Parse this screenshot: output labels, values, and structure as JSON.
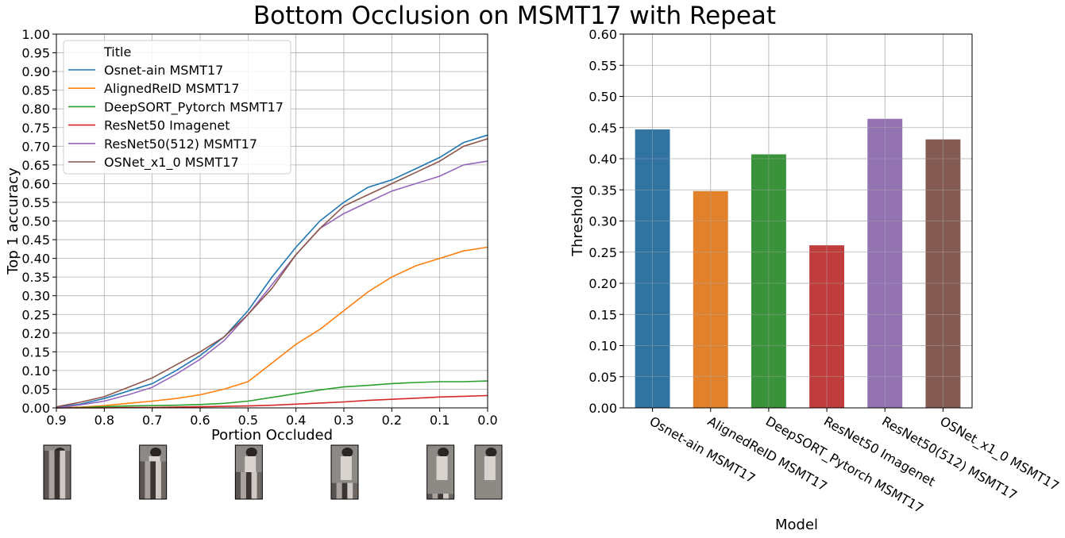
{
  "figure_title": "Bottom Occlusion on MSMT17 with Repeat",
  "chart_data": [
    {
      "type": "line",
      "xlabel": "Portion Occluded",
      "ylabel": "Top 1 accuracy",
      "xlim": [
        0.9,
        0.0
      ],
      "ylim": [
        0.0,
        1.0
      ],
      "x_ticks": [
        "0.9",
        "0.8",
        "0.7",
        "0.6",
        "0.5",
        "0.4",
        "0.3",
        "0.2",
        "0.1",
        "0.0"
      ],
      "y_ticks": [
        "0.00",
        "0.05",
        "0.10",
        "0.15",
        "0.20",
        "0.25",
        "0.30",
        "0.35",
        "0.40",
        "0.45",
        "0.50",
        "0.55",
        "0.60",
        "0.65",
        "0.70",
        "0.75",
        "0.80",
        "0.85",
        "0.90",
        "0.95",
        "1.00"
      ],
      "grid": true,
      "legend": {
        "title": "Title",
        "placement": "top-left"
      },
      "x": [
        0.9,
        0.85,
        0.8,
        0.75,
        0.7,
        0.65,
        0.6,
        0.55,
        0.5,
        0.45,
        0.4,
        0.35,
        0.3,
        0.25,
        0.2,
        0.15,
        0.1,
        0.05,
        0.0
      ],
      "series": [
        {
          "name": "Osnet-ain MSMT17",
          "color": "#1f77b4",
          "values": [
            0.002,
            0.01,
            0.025,
            0.045,
            0.065,
            0.1,
            0.14,
            0.19,
            0.26,
            0.35,
            0.43,
            0.5,
            0.55,
            0.59,
            0.61,
            0.64,
            0.67,
            0.71,
            0.73
          ]
        },
        {
          "name": "AlignedReID MSMT17",
          "color": "#ff7f0e",
          "values": [
            0.0,
            0.002,
            0.006,
            0.012,
            0.018,
            0.025,
            0.035,
            0.05,
            0.07,
            0.12,
            0.17,
            0.21,
            0.26,
            0.31,
            0.35,
            0.38,
            0.4,
            0.42,
            0.43
          ]
        },
        {
          "name": "DeepSORT_Pytorch MSMT17",
          "color": "#2ca02c",
          "values": [
            0.0,
            0.001,
            0.003,
            0.005,
            0.006,
            0.007,
            0.009,
            0.012,
            0.018,
            0.028,
            0.038,
            0.048,
            0.056,
            0.06,
            0.065,
            0.068,
            0.07,
            0.07,
            0.072
          ]
        },
        {
          "name": "ResNet50 Imagenet",
          "color": "#d62728",
          "values": [
            0.0,
            0.0,
            0.0,
            0.001,
            0.001,
            0.002,
            0.003,
            0.004,
            0.005,
            0.007,
            0.01,
            0.013,
            0.016,
            0.02,
            0.023,
            0.026,
            0.029,
            0.031,
            0.033
          ]
        },
        {
          "name": "ResNet50(512) MSMT17",
          "color": "#9467bd",
          "values": [
            0.0,
            0.008,
            0.018,
            0.035,
            0.055,
            0.09,
            0.13,
            0.18,
            0.25,
            0.33,
            0.41,
            0.48,
            0.52,
            0.55,
            0.58,
            0.6,
            0.62,
            0.65,
            0.66
          ]
        },
        {
          "name": "OSNet_x1_0 MSMT17",
          "color": "#8c564b",
          "values": [
            0.003,
            0.015,
            0.03,
            0.055,
            0.08,
            0.115,
            0.15,
            0.19,
            0.25,
            0.32,
            0.41,
            0.48,
            0.54,
            0.57,
            0.6,
            0.63,
            0.66,
            0.7,
            0.72
          ]
        }
      ]
    },
    {
      "type": "bar",
      "xlabel": "Model",
      "ylabel": "Threshold",
      "ylim": [
        0.0,
        0.6
      ],
      "y_ticks": [
        "0.00",
        "0.05",
        "0.10",
        "0.15",
        "0.20",
        "0.25",
        "0.30",
        "0.35",
        "0.40",
        "0.45",
        "0.50",
        "0.55",
        "0.60"
      ],
      "grid": true,
      "categories": [
        "Osnet-ain MSMT17",
        "AlignedReID MSMT17",
        "DeepSORT_Pytorch MSMT17",
        "ResNet50 Imagenet",
        "ResNet50(512) MSMT17",
        "OSNet_x1_0 MSMT17"
      ],
      "values": [
        0.447,
        0.348,
        0.407,
        0.261,
        0.464,
        0.431
      ],
      "colors": [
        "#3274a1",
        "#e1812c",
        "#3a923a",
        "#c03d3e",
        "#9372b2",
        "#845b53"
      ]
    }
  ],
  "occlusion_thumbnails": [
    {
      "label": "0.9",
      "occluded": 0.9
    },
    {
      "label": "0.7",
      "occluded": 0.7
    },
    {
      "label": "0.5",
      "occluded": 0.5
    },
    {
      "label": "0.3",
      "occluded": 0.3
    },
    {
      "label": "0.1",
      "occluded": 0.1
    },
    {
      "label": "0.0",
      "occluded": 0.0
    }
  ]
}
